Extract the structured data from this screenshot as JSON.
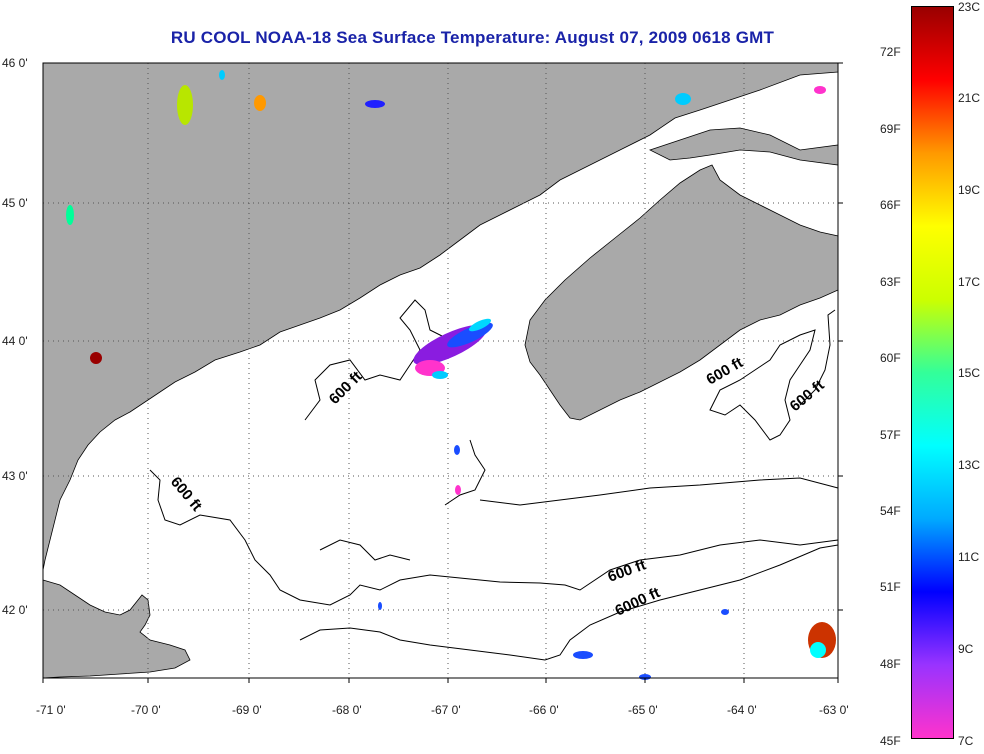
{
  "title": "RU COOL  NOAA-18  Sea Surface Temperature:  August 07, 2009 0618 GMT",
  "map": {
    "lon_labels": [
      "-71 0'",
      "-70 0'",
      "-69 0'",
      "-68 0'",
      "-67 0'",
      "-66 0'",
      "-65 0'",
      "-64 0'",
      "-63 0'"
    ],
    "lat_labels": [
      "46 0'",
      "45 0'",
      "44 0'",
      "43 0'",
      "42 0'"
    ],
    "contour_labels": [
      "600 ft",
      "600 ft",
      "600 ft",
      "600 ft",
      "600 ft",
      "6000 ft"
    ],
    "colors": {
      "land": "#a9a9a9",
      "ocean": "#ffffff",
      "grid": "#555555"
    }
  },
  "colorbar": {
    "fahrenheit": [
      "72F",
      "69F",
      "66F",
      "63F",
      "60F",
      "57F",
      "54F",
      "51F",
      "48F",
      "45F"
    ],
    "celsius": [
      "23C",
      "21C",
      "19C",
      "17C",
      "15C",
      "13C",
      "11C",
      "9C",
      "7C"
    ],
    "colors": [
      "#ff33cc",
      "#9933ff",
      "#0000ff",
      "#00aaff",
      "#00ffff",
      "#33ff99",
      "#ccff00",
      "#ffff00",
      "#ff9900",
      "#ff0000",
      "#990000"
    ]
  }
}
